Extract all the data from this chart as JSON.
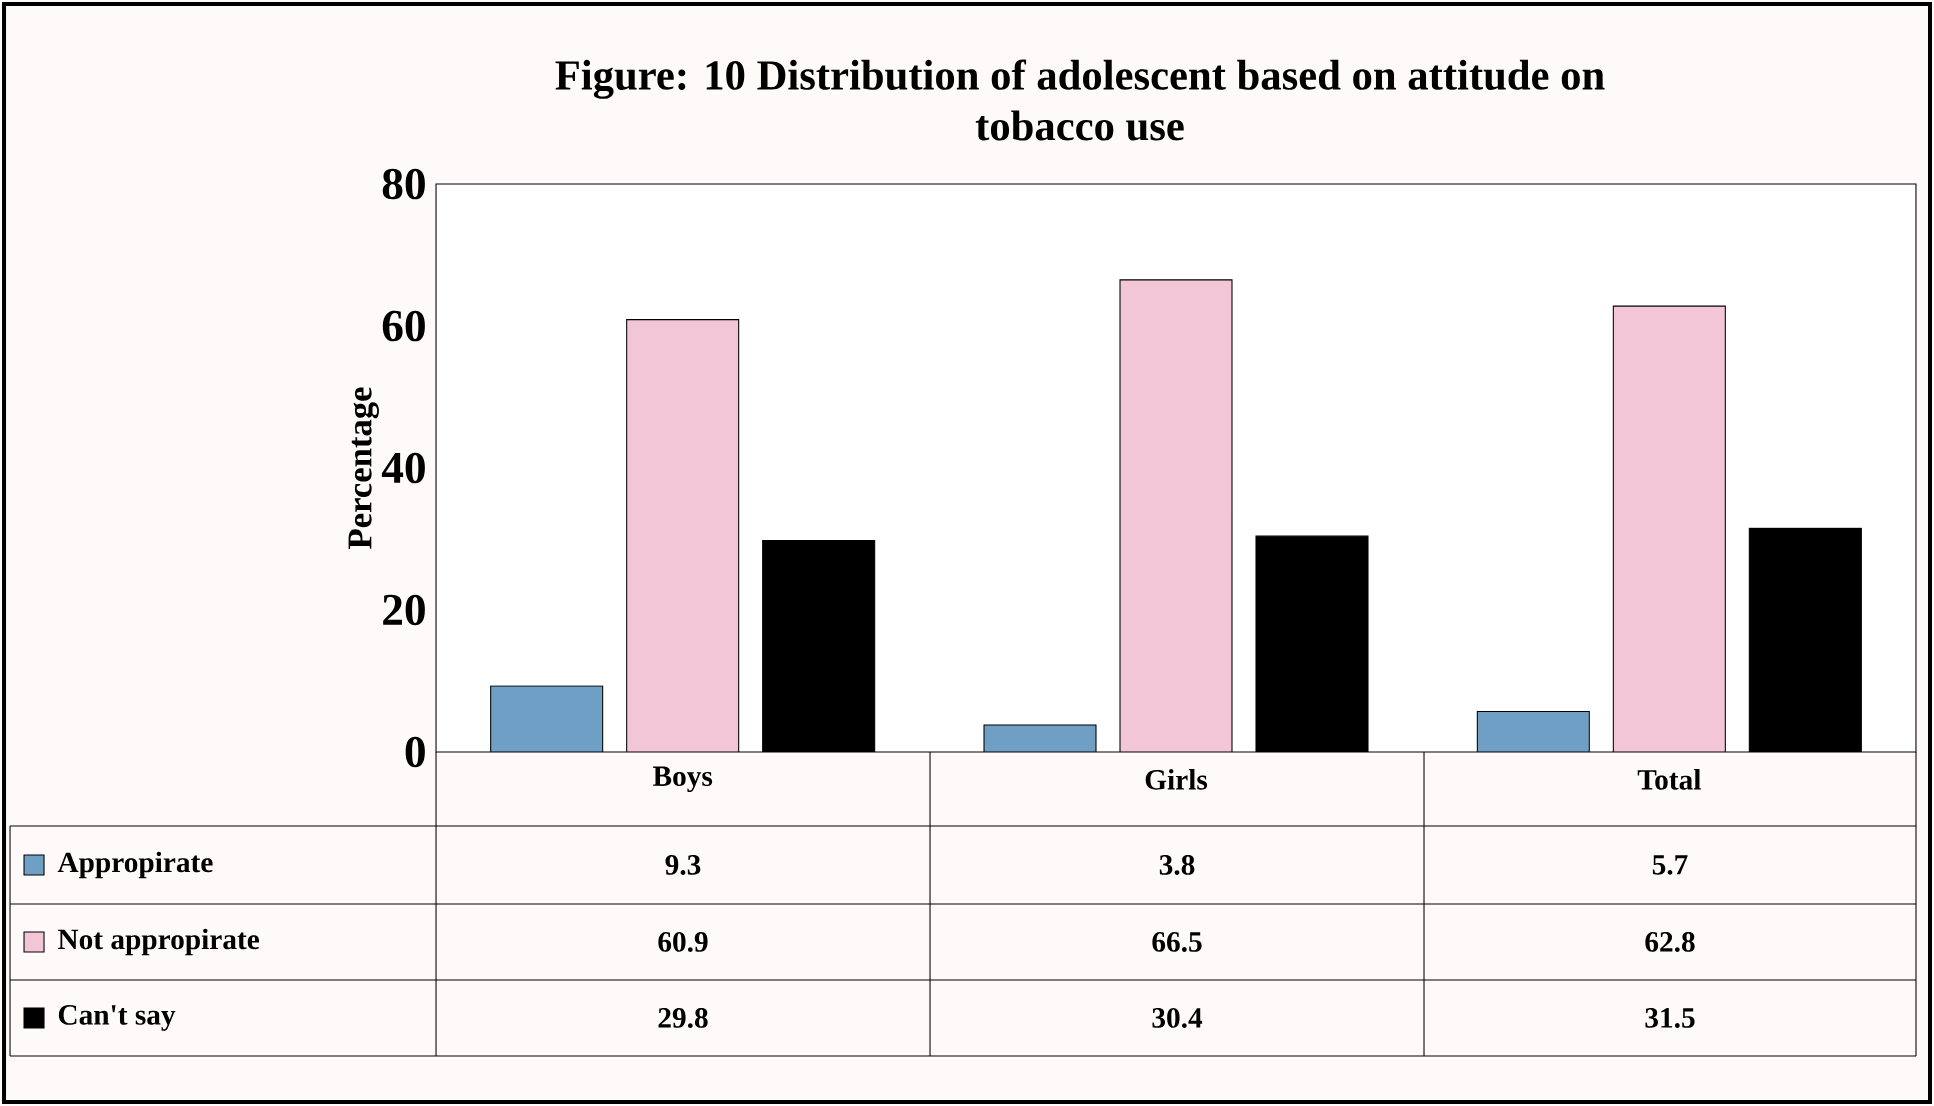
{
  "chart_data": {
    "type": "bar",
    "title": "Figure: 10  Distribution of adolescent based on attitude on tobacco use",
    "ylabel": "Percentage",
    "categories": [
      "Boys",
      "Girls",
      "Total"
    ],
    "series": [
      {
        "name": "Appropirate",
        "color": "#6f9fc4",
        "values": [
          9.3,
          3.8,
          5.7
        ]
      },
      {
        "name": "Not appropirate",
        "color": "#f2c6d6",
        "values": [
          60.9,
          66.5,
          62.8
        ]
      },
      {
        "name": "Can't say",
        "color": "#000000",
        "values": [
          29.8,
          30.4,
          31.5
        ]
      }
    ],
    "ylim": [
      0,
      80
    ],
    "yticks": [
      0,
      20,
      40,
      60,
      80
    ],
    "data_labels": true,
    "legend": "bottom"
  }
}
